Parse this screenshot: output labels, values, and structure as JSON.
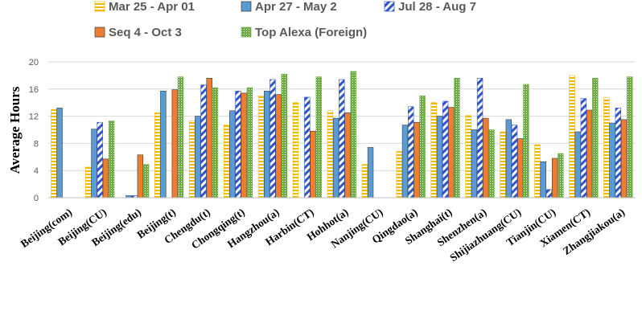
{
  "chart_data": {
    "type": "bar",
    "title": "",
    "xlabel": "",
    "ylabel": "Average Hours",
    "ylim": [
      0,
      20
    ],
    "yticks": [
      "0",
      "4",
      "8",
      "12",
      "16",
      "20"
    ],
    "ytick_values": [
      0,
      4,
      8,
      12,
      16,
      20
    ],
    "grid": true,
    "legend_position": "top",
    "categories": [
      "Beijing(com)",
      "Beijing(CU)",
      "Beijing(edu)",
      "Beijing(t)",
      "Chengdu(t)",
      "Chongqing(t)",
      "Hangzhou(a)",
      "Harbin(CT)",
      "Hohhot(a)",
      "Nanjing(CU)",
      "Qingdao(a)",
      "Shanghai(t)",
      "Shenzhen(a)",
      "Shijiazhuang(CU)",
      "Tianjin(CU)",
      "Xiamen(CT)",
      "Zhangjiakou(a)"
    ],
    "series": [
      {
        "name": "Mar 25 - Apr 01",
        "pattern": "horizontal-stripes",
        "color": "#F5B800",
        "values": [
          13.0,
          4.5,
          null,
          12.5,
          11.3,
          10.7,
          15.0,
          14.0,
          12.8,
          4.9,
          6.8,
          14.0,
          12.1,
          9.7,
          7.8,
          18.0,
          14.7
        ]
      },
      {
        "name": "Apr 27 - May 2",
        "pattern": "solid",
        "color": "#5B9BD5",
        "values": [
          13.2,
          10.1,
          0.3,
          15.7,
          12.0,
          12.8,
          15.7,
          null,
          11.7,
          7.4,
          10.7,
          12.0,
          10.0,
          11.5,
          5.3,
          9.7,
          11.0
        ]
      },
      {
        "name": "Jul 28 - Aug 7",
        "pattern": "diagonal-stripes",
        "color": "#2F55C8",
        "values": [
          null,
          11.1,
          0.3,
          null,
          16.6,
          15.7,
          17.4,
          14.8,
          17.4,
          null,
          13.4,
          14.2,
          17.6,
          10.7,
          1.2,
          14.6,
          13.2
        ]
      },
      {
        "name": "Seq 4 - Oct 3",
        "pattern": "solid",
        "color": "#ED7D31",
        "values": [
          null,
          5.7,
          6.3,
          15.9,
          17.6,
          15.4,
          15.2,
          9.8,
          12.5,
          null,
          11.1,
          13.3,
          11.7,
          8.7,
          5.8,
          12.9,
          11.5
        ]
      },
      {
        "name": "Top Alexa (Foreign)",
        "pattern": "grid",
        "color": "#70AD47",
        "values": [
          null,
          11.3,
          4.9,
          17.8,
          16.2,
          16.2,
          18.2,
          17.8,
          18.6,
          null,
          15.0,
          17.6,
          10.0,
          16.7,
          6.5,
          17.6,
          17.8
        ]
      }
    ]
  }
}
